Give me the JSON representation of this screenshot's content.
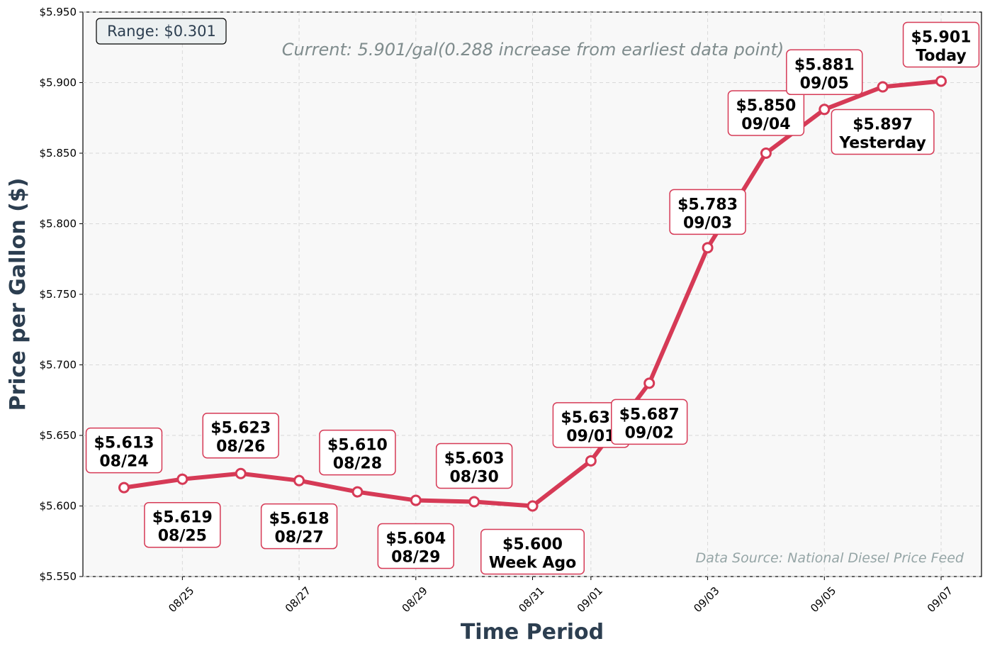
{
  "colors": {
    "line": "#d63a56",
    "plot_bg": "#f8f8f8",
    "axis_title": "#2c3e50",
    "subtitle": "#7f8c8d",
    "source": "#95a5a6",
    "grid": "#d9d9d9"
  },
  "range_box": "Range: $0.301",
  "subtitle": "Current: 5.901/gal(0.288 increase from earliest data point)",
  "source_note": "Data Source: National Diesel Price Feed",
  "chart_data": {
    "type": "line",
    "xlabel": "Time Period",
    "ylabel": "Price per Gallon ($)",
    "ylim": [
      5.55,
      5.95
    ],
    "y_ticks": [
      "$5.550",
      "$5.600",
      "$5.650",
      "$5.700",
      "$5.750",
      "$5.800",
      "$5.850",
      "$5.900",
      "$5.950"
    ],
    "x_ticks": [
      "08/25",
      "08/27",
      "08/29",
      "08/31",
      "09/01",
      "09/03",
      "09/05",
      "09/07"
    ],
    "grid": true,
    "series": [
      {
        "values": [
          {
            "x": "2024-08-24",
            "y": 5.613
          },
          {
            "x": "2024-08-25",
            "y": 5.619
          },
          {
            "x": "2024-08-26",
            "y": 5.623
          },
          {
            "x": "2024-08-27",
            "y": 5.618
          },
          {
            "x": "2024-08-28",
            "y": 5.61
          },
          {
            "x": "2024-08-29",
            "y": 5.604
          },
          {
            "x": "2024-08-30",
            "y": 5.603
          },
          {
            "x": "2024-08-31",
            "y": 5.6
          },
          {
            "x": "2024-09-01",
            "y": 5.632
          },
          {
            "x": "2024-09-02",
            "y": 5.687
          },
          {
            "x": "2024-09-03",
            "y": 5.783
          },
          {
            "x": "2024-09-04",
            "y": 5.85
          },
          {
            "x": "2024-09-05",
            "y": 5.881
          },
          {
            "x": "2024-09-06",
            "y": 5.897
          },
          {
            "x": "2024-09-07",
            "y": 5.901
          }
        ]
      }
    ],
    "annotations": [
      {
        "price": "$5.613",
        "label": "08/24"
      },
      {
        "price": "$5.619",
        "label": "08/25"
      },
      {
        "price": "$5.623",
        "label": "08/26"
      },
      {
        "price": "$5.618",
        "label": "08/27"
      },
      {
        "price": "$5.610",
        "label": "08/28"
      },
      {
        "price": "$5.604",
        "label": "08/29"
      },
      {
        "price": "$5.603",
        "label": "08/30"
      },
      {
        "price": "$5.600",
        "label": "Week Ago"
      },
      {
        "price": "$5.632",
        "label": "09/01"
      },
      {
        "price": "$5.687",
        "label": "09/02"
      },
      {
        "price": "$5.783",
        "label": "09/03"
      },
      {
        "price": "$5.850",
        "label": "09/04"
      },
      {
        "price": "$5.881",
        "label": "09/05"
      },
      {
        "price": "$5.897",
        "label": "Yesterday"
      },
      {
        "price": "$5.901",
        "label": "Today"
      }
    ]
  }
}
